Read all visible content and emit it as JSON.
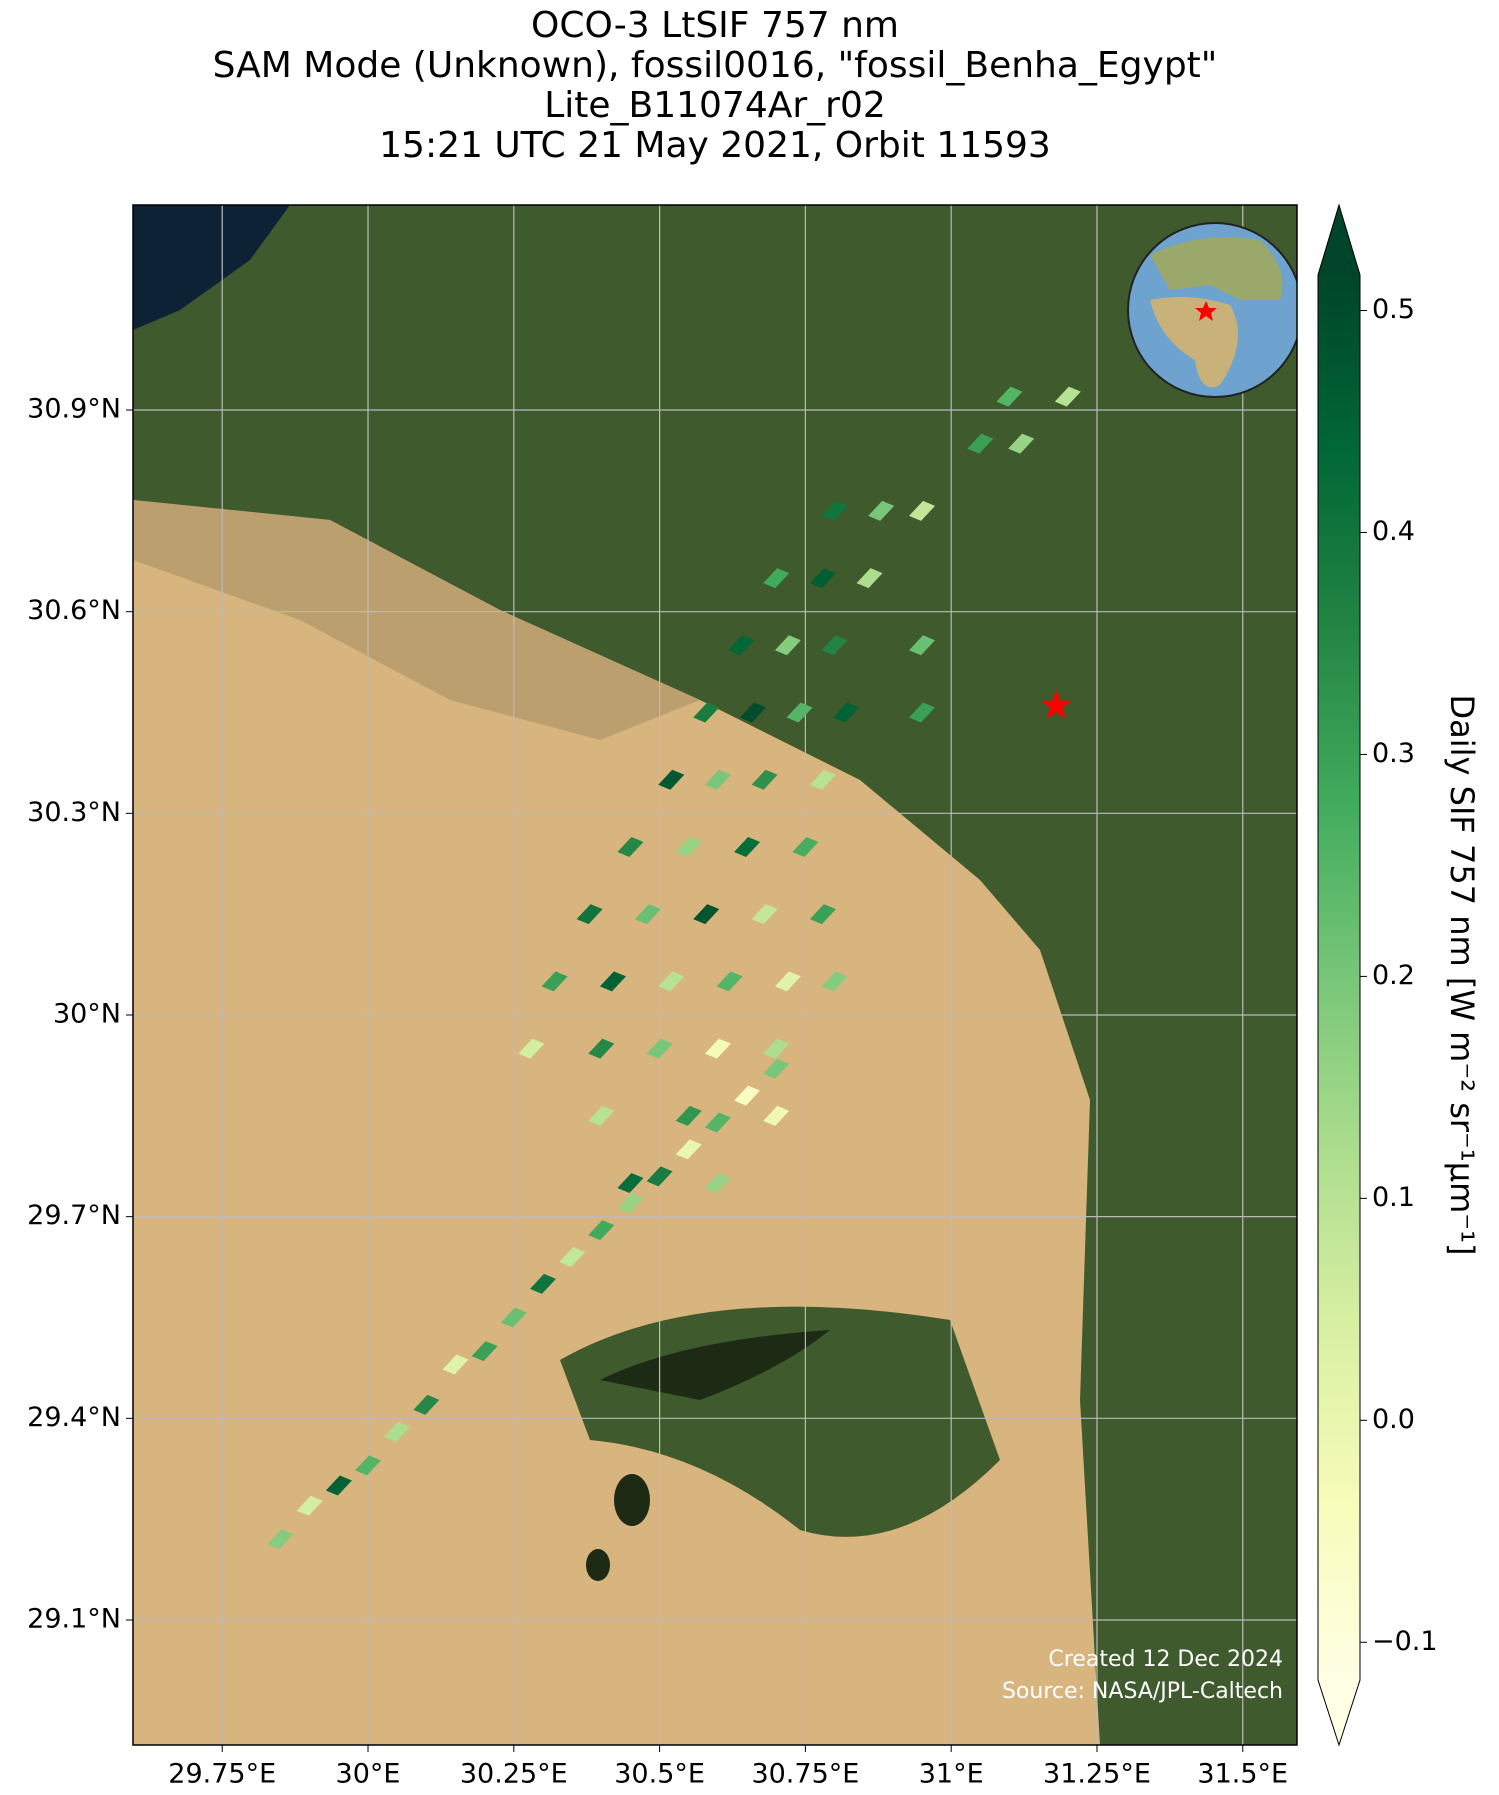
{
  "chart_data": {
    "type": "map",
    "title": [
      "OCO-3 LtSIF 757 nm",
      "SAM Mode (Unknown), fossil0016, \"fossil_Benha_Egypt\"",
      "Lite_B11074Ar_r02",
      "15:21 UTC 21 May 2021, Orbit 11593"
    ],
    "xlim": [
      29.597,
      31.593
    ],
    "ylim": [
      28.914,
      31.205
    ],
    "xticks": [
      {
        "value": 29.75,
        "label": "29.75°E"
      },
      {
        "value": 30,
        "label": "30°E"
      },
      {
        "value": 30.25,
        "label": "30.25°E"
      },
      {
        "value": 30.5,
        "label": "30.5°E"
      },
      {
        "value": 30.75,
        "label": "30.75°E"
      },
      {
        "value": 31,
        "label": "31°E"
      },
      {
        "value": 31.25,
        "label": "31.25°E"
      },
      {
        "value": 31.5,
        "label": "31.5°E"
      }
    ],
    "yticks": [
      {
        "value": 30.9,
        "label": "30.9°N"
      },
      {
        "value": 30.6,
        "label": "30.6°N"
      },
      {
        "value": 30.3,
        "label": "30.3°N"
      },
      {
        "value": 30,
        "label": "30°N"
      },
      {
        "value": 29.7,
        "label": "29.7°N"
      },
      {
        "value": 29.4,
        "label": "29.4°N"
      },
      {
        "value": 29.1,
        "label": "29.1°N"
      }
    ],
    "grid": true,
    "colorbar_label": "Daily SIF 757 nm [W m⁻² sr⁻¹μm⁻¹]",
    "clim": [
      -0.117,
      0.516
    ],
    "cticks": [
      0.5,
      0.4,
      0.3,
      0.2,
      0.1,
      {
        "value": 0,
        "label": "0.0"
      },
      {
        "value": -0.1,
        "label": "−0.1"
      }
    ],
    "colormap": [
      "#ffffe5",
      "#f7fcb9",
      "#d9f0a3",
      "#addd8e",
      "#78c679",
      "#41ab5d",
      "#238443",
      "#006837",
      "#004529"
    ],
    "lon": [
      29.85,
      29.9,
      29.95,
      30.0,
      30.05,
      30.1,
      30.15,
      30.2,
      30.25,
      30.3,
      30.35,
      30.4,
      30.45,
      30.5,
      30.55,
      30.6,
      30.65,
      30.7,
      30.4,
      30.55,
      30.7,
      30.45,
      30.6,
      30.28,
      30.4,
      30.5,
      30.6,
      30.7,
      30.32,
      30.42,
      30.52,
      30.62,
      30.72,
      30.8,
      30.38,
      30.48,
      30.58,
      30.68,
      30.78,
      30.45,
      30.55,
      30.65,
      30.75,
      30.52,
      30.6,
      30.68,
      30.78,
      30.58,
      30.66,
      30.74,
      30.82,
      30.95,
      30.64,
      30.72,
      30.8,
      30.95,
      30.7,
      30.78,
      30.86,
      30.8,
      30.88,
      30.95,
      31.05,
      31.12,
      31.1,
      31.2
    ],
    "lat": [
      29.22,
      29.27,
      29.3,
      29.33,
      29.38,
      29.42,
      29.48,
      29.5,
      29.55,
      29.6,
      29.64,
      29.68,
      29.72,
      29.76,
      29.8,
      29.84,
      29.88,
      29.92,
      29.85,
      29.85,
      29.85,
      29.75,
      29.75,
      29.95,
      29.95,
      29.95,
      29.95,
      29.95,
      30.05,
      30.05,
      30.05,
      30.05,
      30.05,
      30.05,
      30.15,
      30.15,
      30.15,
      30.15,
      30.15,
      30.25,
      30.25,
      30.25,
      30.25,
      30.35,
      30.35,
      30.35,
      30.35,
      30.45,
      30.45,
      30.45,
      30.45,
      30.45,
      30.55,
      30.55,
      30.55,
      30.55,
      30.65,
      30.65,
      30.65,
      30.75,
      30.75,
      30.75,
      30.85,
      30.85,
      30.92,
      30.92
    ],
    "values": [
      0.18,
      0.05,
      0.45,
      0.25,
      0.12,
      0.35,
      0.02,
      0.3,
      0.22,
      0.4,
      0.08,
      0.28,
      0.15,
      0.38,
      0.0,
      0.25,
      -0.05,
      0.2,
      0.1,
      0.32,
      -0.02,
      0.42,
      0.15,
      0.05,
      0.35,
      0.2,
      -0.03,
      0.12,
      0.3,
      0.45,
      0.1,
      0.25,
      0.02,
      0.18,
      0.4,
      0.22,
      0.48,
      0.08,
      0.3,
      0.35,
      0.15,
      0.42,
      0.27,
      0.47,
      0.2,
      0.33,
      0.1,
      0.38,
      0.5,
      0.25,
      0.45,
      0.3,
      0.44,
      0.18,
      0.36,
      0.22,
      0.28,
      0.46,
      0.12,
      0.4,
      0.2,
      0.08,
      0.3,
      0.15,
      0.25,
      0.1
    ],
    "marker": {
      "lon": 31.18,
      "lat": 30.46,
      "color": "#ff0000"
    },
    "annotations": [
      "Created 12 Dec 2024",
      "Source: NASA/JPL-Caltech"
    ]
  }
}
